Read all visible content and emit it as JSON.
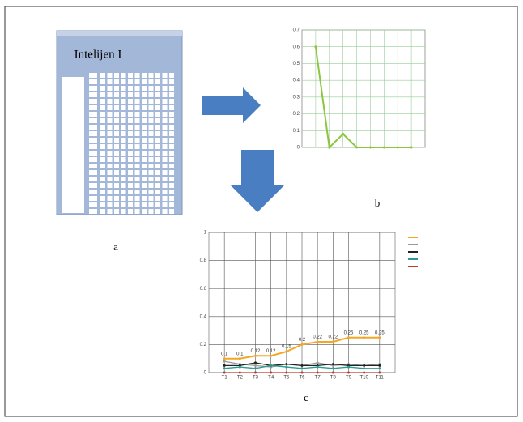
{
  "figure": {
    "panel_labels": [
      "a",
      "b",
      "c"
    ],
    "app_title": "Intelijen I"
  },
  "chart_data": [
    {
      "type": "line",
      "categories": [
        null,
        null,
        null,
        null,
        null,
        null,
        null,
        null
      ],
      "series": [
        {
          "color": "#8cc63f",
          "values": [
            0.6,
            0,
            0.08,
            0,
            0,
            0,
            0,
            0
          ]
        }
      ],
      "ylim": [
        0,
        0.7
      ],
      "yticks": [
        0,
        0.1,
        0.2,
        0.3,
        0.4,
        0.5,
        0.6,
        0.7
      ],
      "grid": true,
      "data_labels": false
    },
    {
      "type": "line",
      "categories": [
        "T1",
        "T2",
        "T3",
        "T4",
        "T5",
        "T6",
        "T7",
        "T8",
        "T9",
        "T10",
        "T11"
      ],
      "series": [
        {
          "color": "#f5a623",
          "values": [
            0.1,
            0.1,
            0.12,
            0.12,
            0.15,
            0.2,
            0.22,
            0.22,
            0.25,
            0.25,
            0.25
          ]
        },
        {
          "color": "#999999",
          "values": [
            0.08,
            0.06,
            0.05,
            0.04,
            0.06,
            0.05,
            0.07,
            0.05,
            0.06,
            0.05,
            0.06
          ]
        },
        {
          "color": "#222222",
          "values": [
            0.05,
            0.05,
            0.07,
            0.05,
            0.06,
            0.05,
            0.05,
            0.06,
            0.05,
            0.05,
            0.05
          ]
        },
        {
          "color": "#2a9d8f",
          "values": [
            0.03,
            0.04,
            0.03,
            0.05,
            0.04,
            0.03,
            0.04,
            0.03,
            0.04,
            0.03,
            0.03
          ]
        },
        {
          "color": "#c0392b",
          "values": [
            0,
            0,
            0,
            0,
            0,
            0,
            0,
            0,
            0,
            0,
            0
          ]
        }
      ],
      "ylim": [
        0,
        1
      ],
      "yticks": [
        0,
        0.2,
        0.4,
        0.6,
        0.8,
        1
      ],
      "grid": true,
      "data_labels": true,
      "legend": "right"
    }
  ]
}
